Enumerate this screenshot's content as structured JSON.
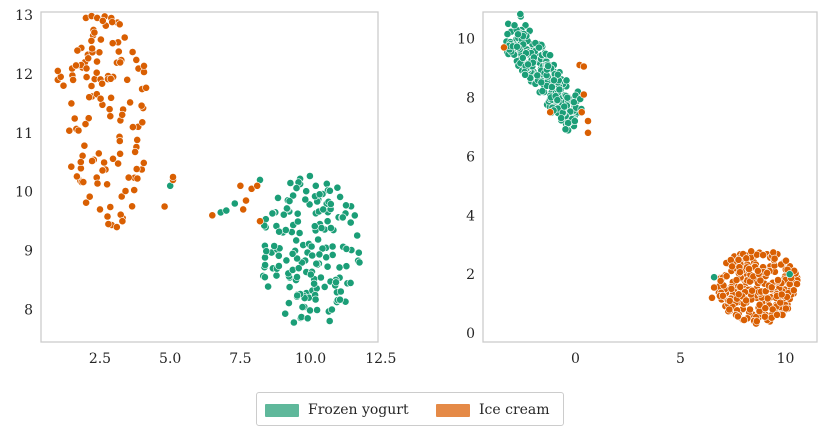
{
  "colors": {
    "frozen_yogurt": "#1b9e77",
    "ice_cream": "#d95f02",
    "frozen_yogurt_legend": "#5fb89b",
    "ice_cream_legend": "#e58a47",
    "frame": "#cccccc"
  },
  "legend": {
    "items": [
      {
        "label": "Frozen yogurt",
        "color_key": "frozen_yogurt_legend"
      },
      {
        "label": "Ice cream",
        "color_key": "ice_cream_legend"
      }
    ]
  },
  "chart_data": [
    {
      "type": "scatter",
      "xlim": [
        0.4,
        12.4
      ],
      "ylim": [
        7.45,
        13.05
      ],
      "xticks": [
        2.5,
        5.0,
        7.5,
        10.0,
        12.5
      ],
      "xtick_labels": [
        "2.5",
        "5.0",
        "7.5",
        "10.0",
        "12.5"
      ],
      "yticks": [
        8,
        9,
        10,
        11,
        12,
        13
      ],
      "ytick_labels": [
        "8",
        "9",
        "10",
        "11",
        "12",
        "13"
      ],
      "grid": false,
      "clusters": [
        {
          "series": "Ice cream",
          "shape": "ellipse",
          "center": [
            2.8,
            11.2
          ],
          "rx": 1.5,
          "ry": 1.8,
          "n": 120
        },
        {
          "series": "Frozen yogurt",
          "shape": "ellipse",
          "center": [
            10.0,
            9.0
          ],
          "rx": 1.8,
          "ry": 1.3,
          "n": 170
        }
      ],
      "series": [
        {
          "name": "Frozen yogurt",
          "points": [
            [
              6.8,
              9.65
            ],
            [
              7.0,
              9.68
            ],
            [
              7.3,
              9.8
            ],
            [
              8.2,
              10.2
            ],
            [
              5.0,
              10.1
            ]
          ]
        },
        {
          "name": "Ice cream",
          "points": [
            [
              6.5,
              9.6
            ],
            [
              7.6,
              9.7
            ],
            [
              7.7,
              9.85
            ],
            [
              7.9,
              10.05
            ],
            [
              8.1,
              10.1
            ],
            [
              7.5,
              10.1
            ],
            [
              8.2,
              9.5
            ],
            [
              5.1,
              10.2
            ],
            [
              5.1,
              10.25
            ],
            [
              4.8,
              9.75
            ],
            [
              1.0,
              11.9
            ],
            [
              1.1,
              11.95
            ],
            [
              1.2,
              11.8
            ],
            [
              1.0,
              12.05
            ],
            [
              2.0,
              12.95
            ],
            [
              2.2,
              12.98
            ],
            [
              2.4,
              12.95
            ],
            [
              2.6,
              12.9
            ],
            [
              3.1,
              9.4
            ],
            [
              2.8,
              9.45
            ],
            [
              3.3,
              9.5
            ],
            [
              2.5,
              9.7
            ]
          ]
        }
      ]
    },
    {
      "type": "scatter",
      "xlim": [
        -4.4,
        11.5
      ],
      "ylim": [
        -0.3,
        10.9
      ],
      "xticks": [
        0,
        5,
        10
      ],
      "xtick_labels": [
        "0",
        "5",
        "10"
      ],
      "yticks": [
        0,
        2,
        4,
        6,
        8,
        10
      ],
      "ytick_labels": [
        "0",
        "2",
        "4",
        "6",
        "8",
        "10"
      ],
      "grid": false,
      "clusters": [
        {
          "series": "Frozen yogurt",
          "shape": "diagonal",
          "from": [
            -3.0,
            10.2
          ],
          "to": [
            0.0,
            7.3
          ],
          "width": 1.1,
          "n": 240
        },
        {
          "series": "Ice cream",
          "shape": "ellipse",
          "center": [
            8.7,
            1.6
          ],
          "rx": 1.9,
          "ry": 1.3,
          "n": 260
        }
      ],
      "series": [
        {
          "name": "Frozen yogurt",
          "points": [
            [
              6.6,
              1.9
            ],
            [
              10.2,
              2.0
            ],
            [
              -3.2,
              10.5
            ],
            [
              -2.9,
              10.45
            ]
          ]
        },
        {
          "name": "Ice cream",
          "points": [
            [
              -3.4,
              9.7
            ],
            [
              0.2,
              9.1
            ],
            [
              0.4,
              9.05
            ],
            [
              0.4,
              8.1
            ],
            [
              0.3,
              7.5
            ],
            [
              0.6,
              7.2
            ],
            [
              0.6,
              6.8
            ],
            [
              -1.2,
              7.5
            ],
            [
              6.6,
              1.55
            ],
            [
              6.5,
              1.2
            ]
          ]
        }
      ]
    }
  ]
}
